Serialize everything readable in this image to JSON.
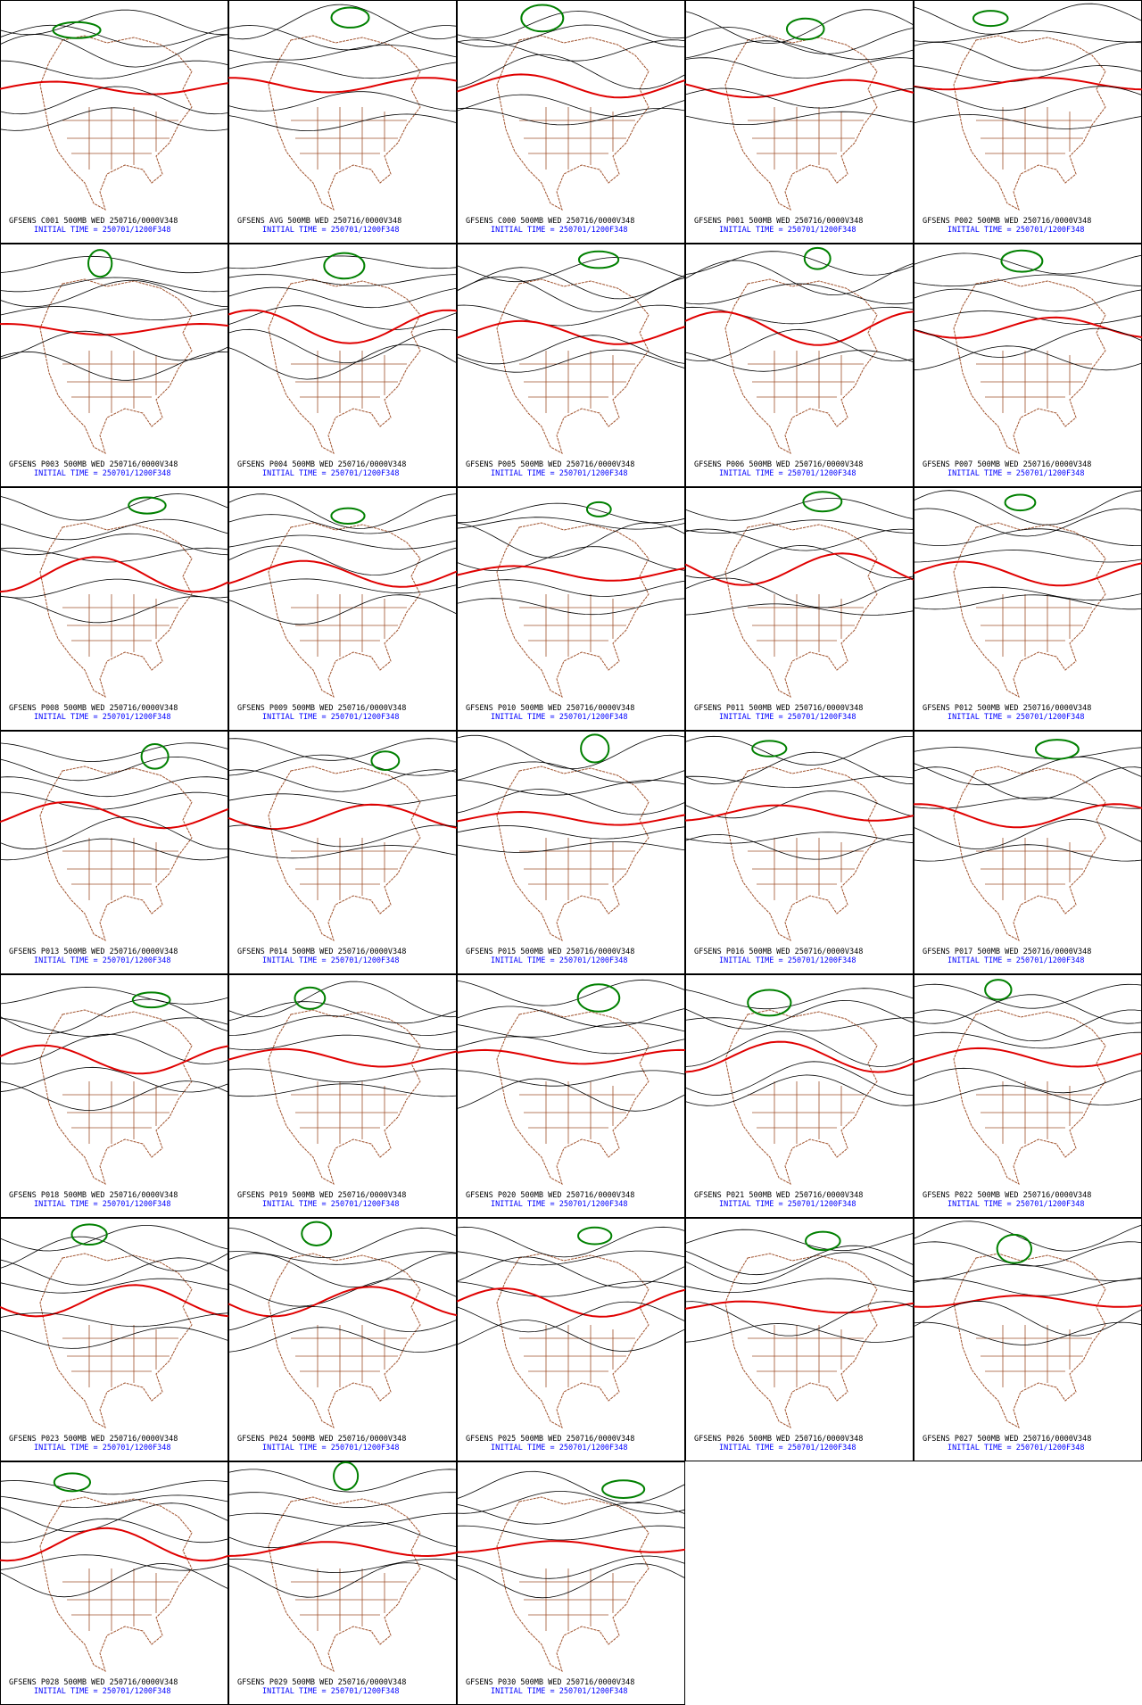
{
  "panels": [
    {
      "line1": "GFSENS C001 500MB WED 250716/0000V348",
      "line2": "INITIAL TIME = 250701/1200F348"
    },
    {
      "line1": "GFSENS AVG 500MB WED 250716/0000V348",
      "line2": "INITIAL TIME = 250701/1200F348"
    },
    {
      "line1": "GFSENS C000 500MB WED 250716/0000V348",
      "line2": "INITIAL TIME = 250701/1200F348"
    },
    {
      "line1": "GFSENS P001 500MB WED 250716/0000V348",
      "line2": "INITIAL TIME = 250701/1200F348"
    },
    {
      "line1": "GFSENS P002 500MB WED 250716/0000V348",
      "line2": "INITIAL TIME = 250701/1200F348"
    },
    {
      "line1": "GFSENS P003 500MB WED 250716/0000V348",
      "line2": "INITIAL TIME = 250701/1200F348"
    },
    {
      "line1": "GFSENS P004 500MB WED 250716/0000V348",
      "line2": "INITIAL TIME = 250701/1200F348"
    },
    {
      "line1": "GFSENS P005 500MB WED 250716/0000V348",
      "line2": "INITIAL TIME = 250701/1200F348"
    },
    {
      "line1": "GFSENS P006 500MB WED 250716/0000V348",
      "line2": "INITIAL TIME = 250701/1200F348"
    },
    {
      "line1": "GFSENS P007 500MB WED 250716/0000V348",
      "line2": "INITIAL TIME = 250701/1200F348"
    },
    {
      "line1": "GFSENS P008 500MB WED 250716/0000V348",
      "line2": "INITIAL TIME = 250701/1200F348"
    },
    {
      "line1": "GFSENS P009 500MB WED 250716/0000V348",
      "line2": "INITIAL TIME = 250701/1200F348"
    },
    {
      "line1": "GFSENS P010 500MB WED 250716/0000V348",
      "line2": "INITIAL TIME = 250701/1200F348"
    },
    {
      "line1": "GFSENS P011 500MB WED 250716/0000V348",
      "line2": "INITIAL TIME = 250701/1200F348"
    },
    {
      "line1": "GFSENS P012 500MB WED 250716/0000V348",
      "line2": "INITIAL TIME = 250701/1200F348"
    },
    {
      "line1": "GFSENS P013 500MB WED 250716/0000V348",
      "line2": "INITIAL TIME = 250701/1200F348"
    },
    {
      "line1": "GFSENS P014 500MB WED 250716/0000V348",
      "line2": "INITIAL TIME = 250701/1200F348"
    },
    {
      "line1": "GFSENS P015 500MB WED 250716/0000V348",
      "line2": "INITIAL TIME = 250701/1200F348"
    },
    {
      "line1": "GFSENS P016 500MB WED 250716/0000V348",
      "line2": "INITIAL TIME = 250701/1200F348"
    },
    {
      "line1": "GFSENS P017 500MB WED 250716/0000V348",
      "line2": "INITIAL TIME = 250701/1200F348"
    },
    {
      "line1": "GFSENS P018 500MB WED 250716/0000V348",
      "line2": "INITIAL TIME = 250701/1200F348"
    },
    {
      "line1": "GFSENS P019 500MB WED 250716/0000V348",
      "line2": "INITIAL TIME = 250701/1200F348"
    },
    {
      "line1": "GFSENS P020 500MB WED 250716/0000V348",
      "line2": "INITIAL TIME = 250701/1200F348"
    },
    {
      "line1": "GFSENS P021 500MB WED 250716/0000V348",
      "line2": "INITIAL TIME = 250701/1200F348"
    },
    {
      "line1": "GFSENS P022 500MB WED 250716/0000V348",
      "line2": "INITIAL TIME = 250701/1200F348"
    },
    {
      "line1": "GFSENS P023 500MB WED 250716/0000V348",
      "line2": "INITIAL TIME = 250701/1200F348"
    },
    {
      "line1": "GFSENS P024 500MB WED 250716/0000V348",
      "line2": "INITIAL TIME = 250701/1200F348"
    },
    {
      "line1": "GFSENS P025 500MB WED 250716/0000V348",
      "line2": "INITIAL TIME = 250701/1200F348"
    },
    {
      "line1": "GFSENS P026 500MB WED 250716/0000V348",
      "line2": "INITIAL TIME = 250701/1200F348"
    },
    {
      "line1": "GFSENS P027 500MB WED 250716/0000V348",
      "line2": "INITIAL TIME = 250701/1200F348"
    },
    {
      "line1": "GFSENS P028 500MB WED 250716/0000V348",
      "line2": "INITIAL TIME = 250701/1200F348"
    },
    {
      "line1": "GFSENS P029 500MB WED 250716/0000V348",
      "line2": "INITIAL TIME = 250701/1200F348"
    },
    {
      "line1": "GFSENS P030 500MB WED 250716/0000V348",
      "line2": "INITIAL TIME = 250701/1200F348"
    }
  ]
}
